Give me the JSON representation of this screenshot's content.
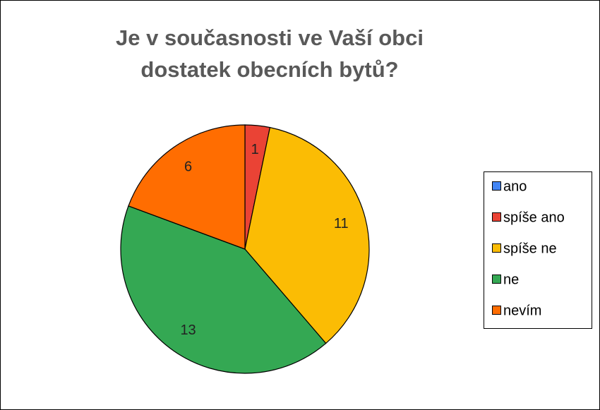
{
  "chart_data": {
    "type": "pie",
    "title": [
      "Je v současnosti ve Vaší obci",
      "dostatek obecních bytů?"
    ],
    "categories": [
      "ano",
      "spíše ano",
      "spíše ne",
      "ne",
      "nevím"
    ],
    "values": [
      0,
      1,
      11,
      13,
      6
    ],
    "colors": [
      "#4285f4",
      "#ea4335",
      "#fbbc04",
      "#34a853",
      "#ff6d01"
    ],
    "legend": "right"
  }
}
